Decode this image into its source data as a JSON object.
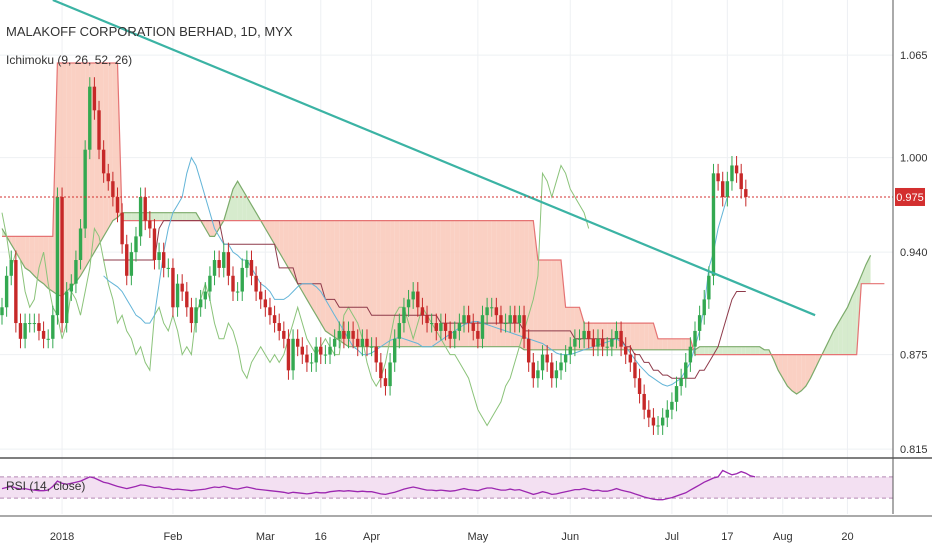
{
  "chart_data": [
    {
      "type": "candlestick",
      "title": "MALAKOFF CORPORATION BERHAD, 1D, MYX",
      "indicator_label": "Ichimoku (9, 26, 52, 26)",
      "ylim": [
        0.81,
        1.1
      ],
      "yticks": [
        {
          "v": 1.065,
          "label": "1.065"
        },
        {
          "v": 1.0,
          "label": "1.000"
        },
        {
          "v": 0.94,
          "label": "0.940"
        },
        {
          "v": 0.875,
          "label": "0.875"
        },
        {
          "v": 0.815,
          "label": "0.815"
        }
      ],
      "last_price": {
        "value": 0.975,
        "label": "0.975"
      },
      "x_labels": [
        {
          "i": 13,
          "label": "2018"
        },
        {
          "i": 37,
          "label": "Feb"
        },
        {
          "i": 57,
          "label": "Mar"
        },
        {
          "i": 69,
          "label": "16"
        },
        {
          "i": 80,
          "label": "Apr"
        },
        {
          "i": 103,
          "label": "May"
        },
        {
          "i": 123,
          "label": "Jun"
        },
        {
          "i": 145,
          "label": "Jul"
        },
        {
          "i": 157,
          "label": "17"
        },
        {
          "i": 169,
          "label": "Aug"
        },
        {
          "i": 183,
          "label": "20"
        }
      ],
      "candles_close": [
        0.905,
        0.925,
        0.935,
        0.895,
        0.885,
        0.895,
        0.895,
        0.895,
        0.89,
        0.885,
        0.885,
        0.9,
        0.975,
        0.895,
        0.915,
        0.92,
        0.935,
        0.955,
        1.005,
        1.045,
        1.03,
        1.005,
        0.99,
        0.985,
        0.975,
        0.965,
        0.945,
        0.925,
        0.94,
        0.95,
        0.975,
        0.96,
        0.955,
        0.935,
        0.94,
        0.93,
        0.93,
        0.905,
        0.92,
        0.915,
        0.905,
        0.895,
        0.905,
        0.91,
        0.915,
        0.925,
        0.935,
        0.93,
        0.94,
        0.925,
        0.915,
        0.915,
        0.93,
        0.935,
        0.925,
        0.915,
        0.91,
        0.905,
        0.9,
        0.895,
        0.89,
        0.885,
        0.865,
        0.885,
        0.88,
        0.875,
        0.87,
        0.87,
        0.88,
        0.875,
        0.875,
        0.88,
        0.885,
        0.89,
        0.885,
        0.89,
        0.885,
        0.88,
        0.885,
        0.88,
        0.88,
        0.87,
        0.86,
        0.855,
        0.87,
        0.885,
        0.895,
        0.905,
        0.91,
        0.915,
        0.905,
        0.9,
        0.895,
        0.895,
        0.89,
        0.895,
        0.89,
        0.885,
        0.89,
        0.895,
        0.9,
        0.895,
        0.89,
        0.885,
        0.9,
        0.905,
        0.905,
        0.9,
        0.895,
        0.895,
        0.9,
        0.895,
        0.9,
        0.885,
        0.87,
        0.86,
        0.865,
        0.875,
        0.87,
        0.86,
        0.865,
        0.87,
        0.875,
        0.88,
        0.885,
        0.885,
        0.89,
        0.885,
        0.88,
        0.885,
        0.88,
        0.88,
        0.885,
        0.89,
        0.88,
        0.875,
        0.87,
        0.86,
        0.85,
        0.84,
        0.835,
        0.83,
        0.83,
        0.835,
        0.84,
        0.845,
        0.855,
        0.86,
        0.87,
        0.88,
        0.89,
        0.9,
        0.91,
        0.925,
        0.99,
        0.985,
        0.975,
        0.985,
        0.995,
        0.99,
        0.98,
        0.975
      ],
      "trendline": {
        "from": {
          "i": 11,
          "v": 1.1
        },
        "to": {
          "i": 176,
          "v": 0.9
        }
      },
      "ichimoku_span_a": [
        0.955,
        0.95,
        0.945,
        0.94,
        0.935,
        0.93,
        0.928,
        0.925,
        0.922,
        0.92,
        0.917,
        0.915,
        0.913,
        0.912,
        0.915,
        0.918,
        0.921,
        0.925,
        0.93,
        0.935,
        0.94,
        0.945,
        0.95,
        0.955,
        0.96,
        0.962,
        0.965,
        0.965,
        0.965,
        0.965,
        0.965,
        0.965,
        0.965,
        0.965,
        0.965,
        0.965,
        0.965,
        0.965,
        0.965,
        0.965,
        0.965,
        0.965,
        0.965,
        0.96,
        0.955,
        0.95,
        0.95,
        0.955,
        0.96,
        0.97,
        0.98,
        0.985,
        0.98,
        0.975,
        0.97,
        0.965,
        0.96,
        0.955,
        0.95,
        0.945,
        0.94,
        0.935,
        0.93,
        0.925,
        0.92,
        0.915,
        0.91,
        0.905,
        0.9,
        0.895,
        0.89,
        0.888,
        0.886,
        0.884,
        0.882,
        0.88,
        0.88,
        0.88,
        0.88,
        0.88,
        0.88,
        0.88,
        0.88,
        0.88,
        0.88,
        0.88,
        0.88,
        0.88,
        0.88,
        0.88,
        0.88,
        0.88,
        0.88,
        0.88,
        0.88,
        0.88,
        0.88,
        0.88,
        0.88,
        0.88,
        0.88,
        0.88,
        0.88,
        0.88,
        0.88,
        0.88,
        0.88,
        0.88,
        0.88,
        0.88,
        0.88,
        0.88,
        0.88,
        0.878,
        0.878,
        0.878,
        0.878,
        0.878,
        0.878,
        0.878,
        0.878,
        0.878,
        0.878,
        0.878,
        0.878,
        0.878,
        0.878,
        0.878,
        0.878,
        0.878,
        0.878,
        0.878,
        0.878,
        0.878,
        0.878,
        0.878,
        0.878,
        0.878,
        0.878,
        0.878,
        0.878,
        0.878,
        0.878,
        0.878,
        0.878,
        0.878,
        0.878,
        0.878,
        0.878,
        0.878,
        0.878,
        0.88,
        0.88,
        0.88,
        0.88,
        0.88,
        0.88,
        0.88,
        0.88,
        0.88,
        0.88,
        0.88,
        0.88,
        0.88,
        0.88,
        0.878,
        0.878,
        0.872,
        0.865,
        0.86,
        0.855,
        0.852,
        0.85,
        0.852,
        0.855,
        0.86,
        0.866,
        0.872,
        0.878,
        0.884,
        0.89,
        0.895,
        0.9,
        0.905,
        0.912,
        0.918,
        0.925,
        0.932,
        0.938
      ],
      "ichimoku_span_b": [
        0.95,
        0.95,
        0.95,
        0.95,
        0.95,
        0.95,
        0.95,
        0.95,
        0.95,
        0.95,
        0.95,
        0.95,
        1.06,
        1.06,
        1.06,
        1.06,
        1.06,
        1.06,
        1.06,
        1.06,
        1.06,
        1.06,
        1.06,
        1.06,
        1.06,
        1.06,
        0.96,
        0.96,
        0.96,
        0.96,
        0.96,
        0.96,
        0.96,
        0.96,
        0.96,
        0.96,
        0.96,
        0.96,
        0.96,
        0.96,
        0.96,
        0.96,
        0.96,
        0.96,
        0.96,
        0.96,
        0.96,
        0.96,
        0.96,
        0.96,
        0.96,
        0.96,
        0.96,
        0.96,
        0.96,
        0.96,
        0.96,
        0.96,
        0.96,
        0.96,
        0.96,
        0.96,
        0.96,
        0.96,
        0.96,
        0.96,
        0.96,
        0.96,
        0.96,
        0.96,
        0.96,
        0.96,
        0.96,
        0.96,
        0.96,
        0.96,
        0.96,
        0.96,
        0.96,
        0.96,
        0.96,
        0.96,
        0.96,
        0.96,
        0.96,
        0.96,
        0.96,
        0.96,
        0.96,
        0.96,
        0.96,
        0.96,
        0.96,
        0.96,
        0.96,
        0.96,
        0.96,
        0.96,
        0.96,
        0.96,
        0.96,
        0.96,
        0.96,
        0.96,
        0.96,
        0.96,
        0.96,
        0.96,
        0.96,
        0.96,
        0.96,
        0.96,
        0.96,
        0.96,
        0.96,
        0.96,
        0.935,
        0.935,
        0.935,
        0.935,
        0.935,
        0.935,
        0.905,
        0.905,
        0.905,
        0.905,
        0.895,
        0.895,
        0.895,
        0.895,
        0.895,
        0.895,
        0.895,
        0.895,
        0.895,
        0.895,
        0.895,
        0.895,
        0.895,
        0.895,
        0.895,
        0.895,
        0.885,
        0.885,
        0.885,
        0.885,
        0.885,
        0.885,
        0.885,
        0.885,
        0.875,
        0.875,
        0.875,
        0.875,
        0.875,
        0.875,
        0.875,
        0.875,
        0.875,
        0.875,
        0.875,
        0.875,
        0.875,
        0.875,
        0.875,
        0.875,
        0.875,
        0.875,
        0.875,
        0.875,
        0.875,
        0.875,
        0.875,
        0.875,
        0.875,
        0.875,
        0.875,
        0.875,
        0.875,
        0.875,
        0.875,
        0.875,
        0.875,
        0.875,
        0.875,
        0.875,
        0.92,
        0.92,
        0.92,
        0.92,
        0.92,
        0.92
      ],
      "ichimoku_lagging": [
        0.965,
        0.95,
        0.93,
        0.94,
        0.935,
        0.915,
        0.905,
        0.91,
        0.93,
        0.94,
        0.92,
        0.905,
        0.9,
        0.885,
        0.895,
        0.915,
        0.91,
        0.9,
        0.915,
        0.93,
        0.955,
        0.95,
        0.935,
        0.92,
        0.91,
        0.895,
        0.9,
        0.89,
        0.885,
        0.875,
        0.88,
        0.87,
        0.865,
        0.9,
        0.905,
        0.895,
        0.89,
        0.9,
        0.89,
        0.875,
        0.88,
        0.875,
        0.9,
        0.91,
        0.92,
        0.91,
        0.895,
        0.885,
        0.885,
        0.895,
        0.89,
        0.88,
        0.865,
        0.86,
        0.87,
        0.875,
        0.88,
        0.875,
        0.87,
        0.875,
        0.87,
        0.875,
        0.885,
        0.895,
        0.905,
        0.895,
        0.885,
        0.88,
        0.875,
        0.88,
        0.885,
        0.88,
        0.875,
        0.875,
        0.9,
        0.905,
        0.9,
        0.895,
        0.885,
        0.87,
        0.86,
        0.855,
        0.86,
        0.87,
        0.885,
        0.9,
        0.905,
        0.905,
        0.895,
        0.885,
        0.895,
        0.905,
        0.9,
        0.895,
        0.89,
        0.885,
        0.88,
        0.875,
        0.875,
        0.87,
        0.865,
        0.86,
        0.85,
        0.84,
        0.835,
        0.83,
        0.835,
        0.84,
        0.845,
        0.855,
        0.86,
        0.87,
        0.88,
        0.89,
        0.9,
        0.91,
        0.925,
        0.99,
        0.985,
        0.975,
        0.985,
        0.995,
        0.99,
        0.98,
        0.975,
        0.97,
        0.965,
        0.955
      ],
      "ichimoku_conversion": [
        0.925,
        0.922,
        0.92,
        0.918,
        0.915,
        0.91,
        0.905,
        0.9,
        0.898,
        0.895,
        0.895,
        0.9,
        0.92,
        0.94,
        0.955,
        0.965,
        0.97,
        0.975,
        0.99,
        1.0,
        0.995,
        0.985,
        0.975,
        0.965,
        0.955,
        0.95,
        0.945,
        0.945,
        0.94,
        0.938,
        0.935,
        0.935,
        0.93,
        0.925,
        0.92,
        0.918,
        0.915,
        0.91,
        0.91,
        0.91,
        0.912,
        0.915,
        0.918,
        0.92,
        0.92,
        0.92,
        0.918,
        0.915,
        0.91,
        0.905,
        0.9,
        0.895,
        0.89,
        0.885,
        0.88,
        0.878,
        0.875,
        0.875,
        0.876,
        0.878,
        0.88,
        0.882,
        0.884,
        0.885,
        0.886,
        0.885,
        0.884,
        0.883,
        0.882,
        0.88,
        0.88,
        0.88,
        0.882,
        0.884,
        0.886,
        0.888,
        0.89,
        0.892,
        0.894,
        0.895,
        0.896,
        0.896,
        0.895,
        0.894,
        0.893,
        0.892,
        0.891,
        0.89,
        0.889,
        0.888,
        0.887,
        0.886,
        0.885,
        0.884,
        0.883,
        0.882,
        0.88,
        0.878,
        0.876,
        0.875,
        0.875,
        0.875,
        0.876,
        0.877,
        0.878,
        0.879,
        0.88,
        0.881,
        0.882,
        0.883,
        0.884,
        0.885,
        0.883,
        0.88,
        0.876,
        0.872,
        0.868,
        0.865,
        0.862,
        0.86,
        0.858,
        0.856,
        0.855,
        0.856,
        0.858,
        0.86,
        0.865,
        0.87,
        0.88,
        0.89,
        0.905,
        0.93,
        0.94,
        0.955,
        0.965,
        0.975
      ],
      "ichimoku_base": [
        0.935,
        0.935,
        0.935,
        0.935,
        0.935,
        0.935,
        0.935,
        0.935,
        0.935,
        0.935,
        0.935,
        0.935,
        0.955,
        0.96,
        0.96,
        0.96,
        0.96,
        0.96,
        0.96,
        0.96,
        0.96,
        0.96,
        0.96,
        0.96,
        0.96,
        0.96,
        0.945,
        0.945,
        0.945,
        0.945,
        0.945,
        0.945,
        0.945,
        0.945,
        0.945,
        0.945,
        0.945,
        0.945,
        0.93,
        0.93,
        0.93,
        0.93,
        0.92,
        0.92,
        0.92,
        0.92,
        0.92,
        0.92,
        0.91,
        0.91,
        0.91,
        0.905,
        0.905,
        0.905,
        0.905,
        0.905,
        0.905,
        0.905,
        0.9,
        0.9,
        0.9,
        0.9,
        0.9,
        0.9,
        0.9,
        0.9,
        0.9,
        0.9,
        0.9,
        0.9,
        0.9,
        0.9,
        0.9,
        0.895,
        0.895,
        0.895,
        0.895,
        0.895,
        0.895,
        0.895,
        0.895,
        0.895,
        0.895,
        0.895,
        0.895,
        0.895,
        0.895,
        0.895,
        0.895,
        0.895,
        0.895,
        0.89,
        0.89,
        0.89,
        0.89,
        0.89,
        0.89,
        0.89,
        0.89,
        0.89,
        0.89,
        0.89,
        0.885,
        0.885,
        0.885,
        0.885,
        0.885,
        0.885,
        0.885,
        0.885,
        0.885,
        0.885,
        0.885,
        0.88,
        0.88,
        0.875,
        0.875,
        0.87,
        0.87,
        0.865,
        0.865,
        0.862,
        0.862,
        0.86,
        0.86,
        0.86,
        0.86,
        0.86,
        0.86,
        0.865,
        0.865,
        0.87,
        0.875,
        0.88,
        0.89,
        0.9,
        0.91,
        0.915,
        0.915,
        0.915
      ]
    },
    {
      "type": "line",
      "title": "RSI (14, close)",
      "ylim": [
        0,
        100
      ],
      "band_upper": 70,
      "band_lower": 30,
      "values": [
        48,
        50,
        52,
        49,
        47,
        48,
        46,
        45,
        44,
        44,
        45,
        52,
        62,
        58,
        56,
        58,
        60,
        62,
        66,
        70,
        68,
        64,
        60,
        58,
        55,
        52,
        50,
        48,
        50,
        52,
        55,
        54,
        52,
        50,
        51,
        49,
        48,
        46,
        47,
        46,
        45,
        44,
        45,
        46,
        47,
        49,
        51,
        50,
        52,
        50,
        48,
        47,
        49,
        51,
        49,
        47,
        46,
        45,
        44,
        43,
        42,
        41,
        39,
        41,
        40,
        39,
        38,
        39,
        41,
        40,
        40,
        42,
        43,
        44,
        43,
        44,
        43,
        42,
        43,
        42,
        42,
        40,
        38,
        37,
        39,
        41,
        44,
        47,
        49,
        51,
        49,
        47,
        45,
        45,
        44,
        45,
        44,
        43,
        44,
        46,
        48,
        46,
        45,
        44,
        47,
        49,
        49,
        47,
        45,
        45,
        47,
        45,
        46,
        43,
        40,
        37,
        39,
        42,
        40,
        37,
        38,
        40,
        42,
        44,
        46,
        46,
        48,
        46,
        44,
        45,
        43,
        43,
        45,
        48,
        45,
        43,
        41,
        38,
        35,
        32,
        30,
        28,
        27,
        27,
        29,
        31,
        34,
        37,
        40,
        45,
        50,
        55,
        60,
        64,
        68,
        70,
        82,
        78,
        74,
        76,
        80,
        77,
        72,
        70
      ]
    }
  ],
  "colors": {
    "up": "#33a850",
    "down": "#c62828",
    "price_line": "#d32f2f",
    "trendline": "#3bb3a4",
    "span_a": "#7cab6b",
    "span_b": "#e57373",
    "cloud_bear": "#f9c8b8",
    "cloud_bull": "#cfe7c4",
    "lagging": "#8bc37a",
    "conversion": "#64b5d8",
    "base": "#8e3a4a",
    "rsi_line": "#9c27b0",
    "rsi_band": "#f3e0f2"
  }
}
